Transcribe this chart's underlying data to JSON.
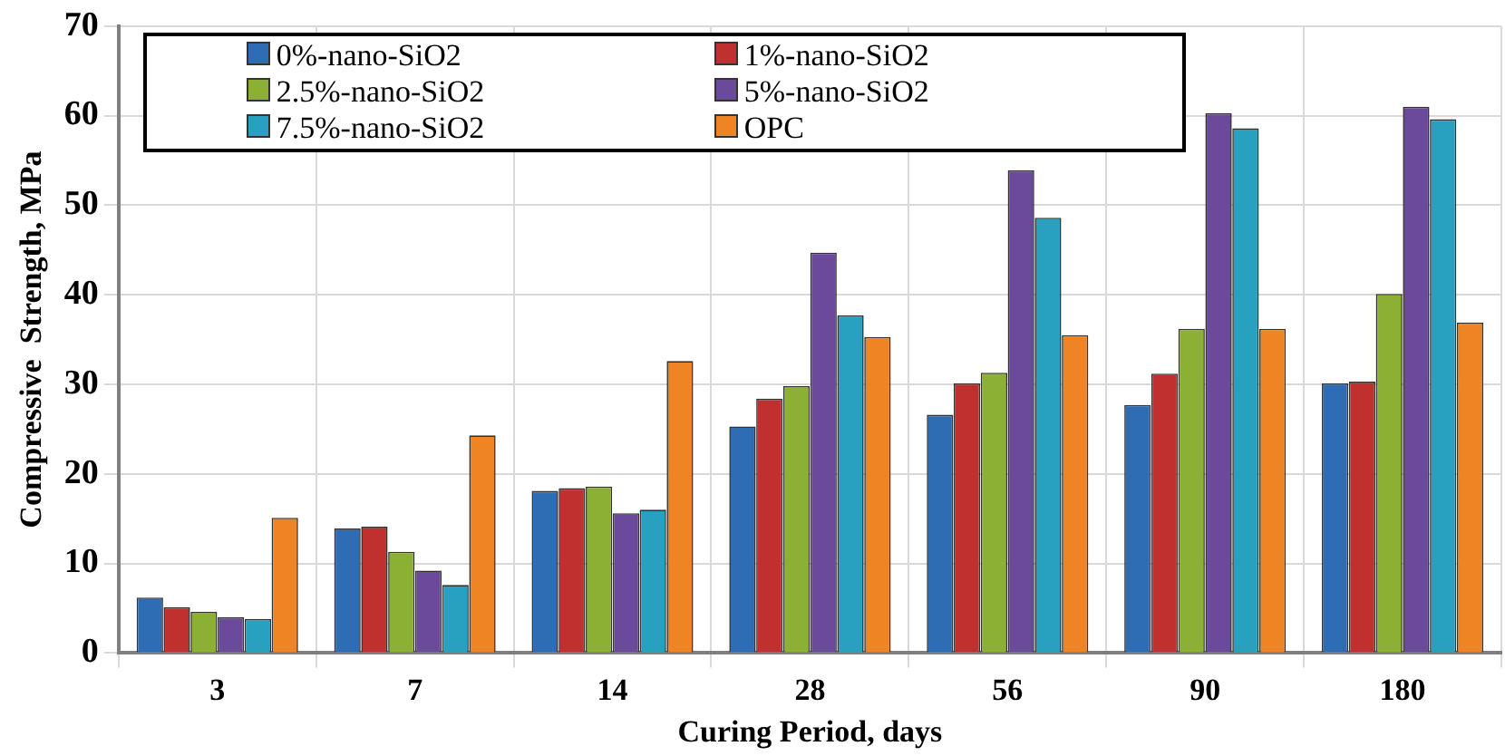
{
  "chart_data": {
    "type": "bar",
    "xlabel": "Curing Period, days",
    "ylabel": "Compressive  Strength, MPa",
    "categories": [
      "3",
      "7",
      "14",
      "28",
      "56",
      "90",
      "180"
    ],
    "series": [
      {
        "name": "0%-nano-SiO2",
        "color": "#2e6db4",
        "values": [
          6.2,
          13.9,
          18.1,
          25.3,
          26.6,
          27.7,
          30.1
        ]
      },
      {
        "name": "1%-nano-SiO2",
        "color": "#c0302e",
        "values": [
          5.1,
          14.1,
          18.4,
          28.4,
          30.1,
          31.2,
          30.3
        ]
      },
      {
        "name": "2.5%-nano-SiO2",
        "color": "#8cb033",
        "values": [
          4.6,
          11.3,
          18.6,
          29.8,
          31.3,
          36.2,
          40.1
        ]
      },
      {
        "name": "5%-nano-SiO2",
        "color": "#6b4a9c",
        "values": [
          4.0,
          9.2,
          15.6,
          44.7,
          53.9,
          60.3,
          61.0
        ]
      },
      {
        "name": "7.5%-nano-SiO2",
        "color": "#28a0c0",
        "values": [
          3.8,
          7.6,
          16.0,
          37.7,
          48.6,
          58.6,
          59.6
        ]
      },
      {
        "name": "OPC",
        "color": "#ee8424",
        "values": [
          15.1,
          24.3,
          32.6,
          35.3,
          35.5,
          36.2,
          36.9
        ]
      }
    ],
    "ylim": [
      0,
      70
    ],
    "yticks": [
      0,
      10,
      20,
      30,
      40,
      50,
      60,
      70
    ],
    "grid": true,
    "legend": "top left"
  }
}
